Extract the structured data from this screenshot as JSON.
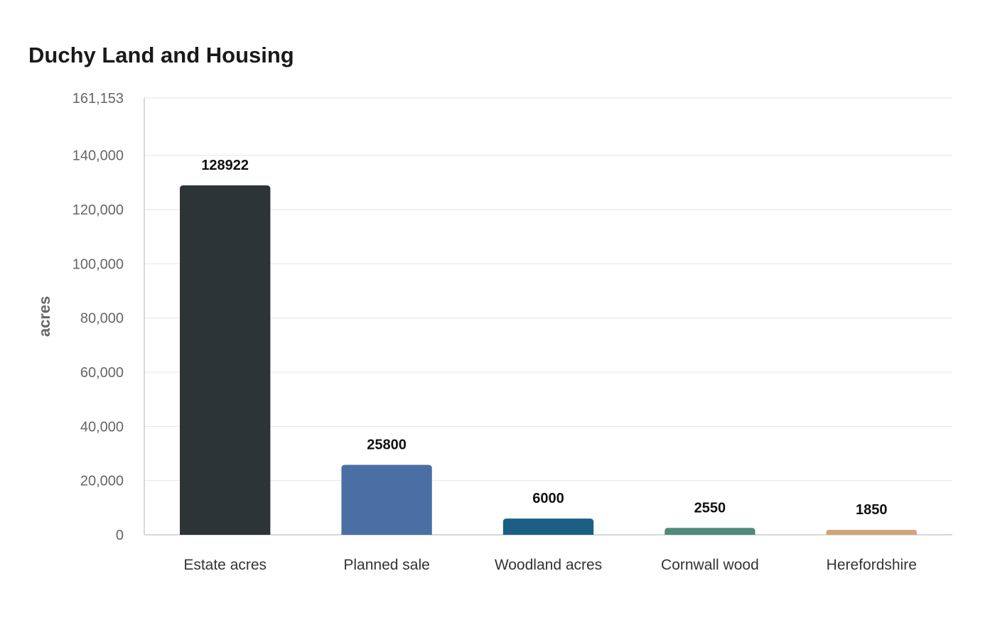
{
  "chart_data": {
    "type": "bar",
    "title": "Duchy Land and Housing",
    "xlabel": "",
    "ylabel": "acres",
    "categories": [
      "Estate acres",
      "Planned sale",
      "Woodland acres",
      "Cornwall wood",
      "Herefordshire"
    ],
    "values": [
      128922,
      25800,
      6000,
      2550,
      1850
    ],
    "data_labels": [
      "128922",
      "25800",
      "6000",
      "2550",
      "1850"
    ],
    "colors": [
      "#2d3436",
      "#4a6fa5",
      "#1b5e85",
      "#4e8a7a",
      "#d1a57a"
    ],
    "ylim": [
      0,
      161153
    ],
    "y_ticks": [
      0,
      20000,
      40000,
      60000,
      80000,
      100000,
      120000,
      140000,
      161153
    ],
    "y_tick_labels": [
      "0",
      "20,000",
      "40,000",
      "60,000",
      "80,000",
      "100,000",
      "120,000",
      "140,000",
      "161,153"
    ],
    "grid": true,
    "legend": "none"
  }
}
